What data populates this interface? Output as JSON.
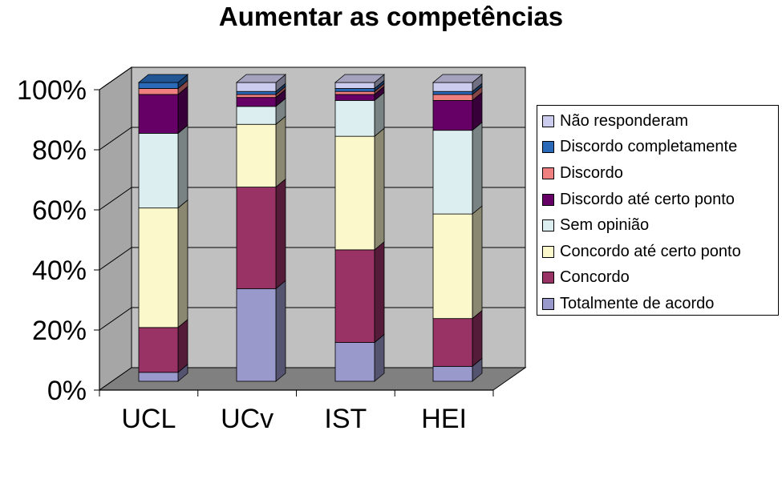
{
  "chart_data": {
    "type": "bar",
    "stacked": true,
    "three_d": true,
    "title": "Aumentar as competências",
    "categories": [
      "UCL",
      "UCv",
      "IST",
      "HEI"
    ],
    "y_ticks": [
      "0%",
      "20%",
      "40%",
      "60%",
      "80%",
      "100%"
    ],
    "ylim": [
      0,
      100
    ],
    "grid": true,
    "legend_position": "right",
    "series": [
      {
        "name": "Totalmente de acordo",
        "color": "#9999cc",
        "values": [
          3,
          31,
          13,
          5
        ]
      },
      {
        "name": "Concordo",
        "color": "#993366",
        "values": [
          15,
          34,
          31,
          16
        ]
      },
      {
        "name": "Concordo até certo ponto",
        "color": "#fbf8cc",
        "values": [
          40,
          21,
          38,
          35
        ]
      },
      {
        "name": "Sem opinião",
        "color": "#dceef0",
        "values": [
          25,
          6,
          12,
          28
        ]
      },
      {
        "name": "Discordo até certo ponto",
        "color": "#660066",
        "values": [
          13,
          3,
          2,
          10
        ]
      },
      {
        "name": "Discordo",
        "color": "#f08080",
        "values": [
          2,
          1,
          1,
          2
        ]
      },
      {
        "name": "Discordo completamente",
        "color": "#2a6ab8",
        "values": [
          2,
          1,
          1,
          1
        ]
      },
      {
        "name": "Não responderam",
        "color": "#ccccee",
        "values": [
          0,
          3,
          2,
          3
        ]
      }
    ]
  },
  "colors": {
    "plot_back_wall": "#c0c0c0",
    "plot_side_wall": "#a6a6a6",
    "plot_floor": "#808080"
  }
}
